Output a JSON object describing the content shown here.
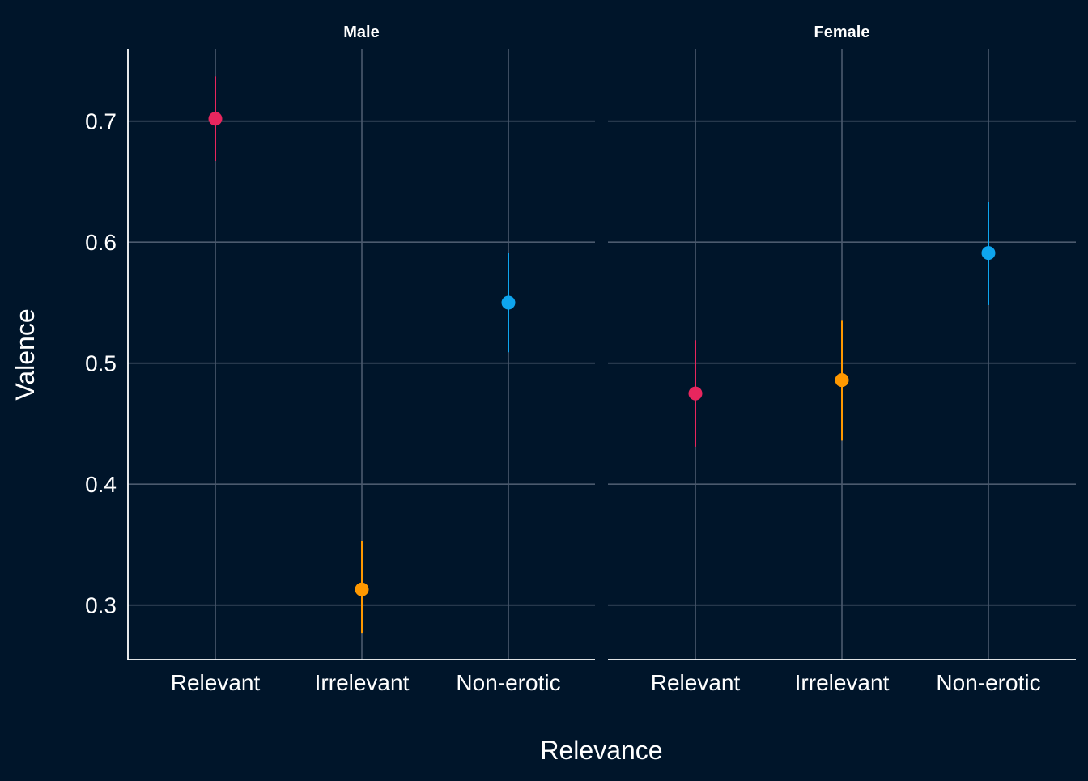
{
  "chart_data": {
    "type": "scatter",
    "subtype": "pointrange",
    "xlabel": "Relevance",
    "ylabel": "Valence",
    "categories": [
      "Relevant",
      "Irrelevant",
      "Non-erotic"
    ],
    "ylim": [
      0.255,
      0.76
    ],
    "yticks": [
      "0.3",
      "0.4",
      "0.5",
      "0.6",
      "0.7"
    ],
    "grid": true,
    "colors": {
      "Relevant": "#e8265e",
      "Irrelevant": "#ff9800",
      "Non-erotic": "#0ea5ee"
    },
    "panels": [
      {
        "label": "Male",
        "points": [
          {
            "category": "Relevant",
            "y": 0.702,
            "lower": 0.667,
            "upper": 0.737
          },
          {
            "category": "Irrelevant",
            "y": 0.313,
            "lower": 0.277,
            "upper": 0.353
          },
          {
            "category": "Non-erotic",
            "y": 0.55,
            "lower": 0.509,
            "upper": 0.591
          }
        ]
      },
      {
        "label": "Female",
        "points": [
          {
            "category": "Relevant",
            "y": 0.475,
            "lower": 0.431,
            "upper": 0.519
          },
          {
            "category": "Irrelevant",
            "y": 0.486,
            "lower": 0.436,
            "upper": 0.535
          },
          {
            "category": "Non-erotic",
            "y": 0.591,
            "lower": 0.548,
            "upper": 0.633
          }
        ]
      }
    ]
  }
}
